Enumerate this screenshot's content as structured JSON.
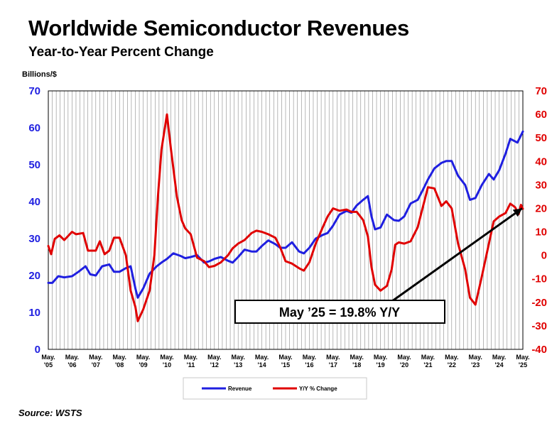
{
  "title": "Worldwide Semiconductor Revenues",
  "subtitle": "Year-to-Year Percent Change",
  "unit_label": "Billions/$",
  "source": "Source: WSTS",
  "annotation": "May ’25 = 19.8% Y/Y",
  "colors": {
    "revenue": "#1f1fe0",
    "yoy": "#e00000",
    "grid": "#888888",
    "arrow": "#000000"
  },
  "chart_data": {
    "type": "line",
    "title": "Worldwide Semiconductor Revenues",
    "subtitle": "Year-to-Year Percent Change",
    "ylabel": "Billions/$",
    "ylim": [
      0,
      70
    ],
    "y2lim": [
      -40,
      70
    ],
    "y_ticks": [
      0,
      10,
      20,
      30,
      40,
      50,
      60,
      70
    ],
    "y2_ticks": [
      -40,
      -30,
      -20,
      -10,
      0,
      10,
      20,
      30,
      40,
      50,
      60,
      70
    ],
    "x_tick_labels": [
      [
        "May.",
        "'05"
      ],
      [
        "May.",
        "'06"
      ],
      [
        "May.",
        "'07"
      ],
      [
        "May.",
        "'08"
      ],
      [
        "May.",
        "'09"
      ],
      [
        "May.",
        "'10"
      ],
      [
        "May.",
        "'11"
      ],
      [
        "May.",
        "'12"
      ],
      [
        "May.",
        "'13"
      ],
      [
        "May.",
        "'14"
      ],
      [
        "May.",
        "'15"
      ],
      [
        "May.",
        "'16"
      ],
      [
        "May.",
        "'17"
      ],
      [
        "May.",
        "'18"
      ],
      [
        "May.",
        "'19"
      ],
      [
        "May.",
        "'20"
      ],
      [
        "May.",
        "'21"
      ],
      [
        "May.",
        "'22"
      ],
      [
        "May.",
        "'23"
      ],
      [
        "May.",
        "'24"
      ],
      [
        "May.",
        "'25"
      ]
    ],
    "grid": "vertical",
    "legend_position": "bottom-center",
    "series": [
      {
        "name": "Revenue",
        "axis": "left",
        "points": [
          [
            2005.33,
            18.0
          ],
          [
            2005.5,
            18.0
          ],
          [
            2005.75,
            19.8
          ],
          [
            2006.0,
            19.5
          ],
          [
            2006.33,
            19.8
          ],
          [
            2006.6,
            21.0
          ],
          [
            2006.9,
            22.5
          ],
          [
            2007.1,
            20.3
          ],
          [
            2007.33,
            20.0
          ],
          [
            2007.6,
            22.5
          ],
          [
            2007.9,
            23.0
          ],
          [
            2008.1,
            21.0
          ],
          [
            2008.33,
            21.0
          ],
          [
            2008.6,
            22.0
          ],
          [
            2008.8,
            22.5
          ],
          [
            2009.0,
            16.5
          ],
          [
            2009.1,
            14.0
          ],
          [
            2009.33,
            16.5
          ],
          [
            2009.6,
            20.5
          ],
          [
            2009.9,
            22.5
          ],
          [
            2010.1,
            23.5
          ],
          [
            2010.33,
            24.5
          ],
          [
            2010.6,
            26.0
          ],
          [
            2010.9,
            25.3
          ],
          [
            2011.1,
            24.7
          ],
          [
            2011.33,
            25.0
          ],
          [
            2011.6,
            25.5
          ],
          [
            2011.9,
            23.5
          ],
          [
            2012.1,
            23.8
          ],
          [
            2012.33,
            24.5
          ],
          [
            2012.6,
            25.0
          ],
          [
            2012.9,
            24.0
          ],
          [
            2013.1,
            23.5
          ],
          [
            2013.33,
            25.0
          ],
          [
            2013.6,
            27.0
          ],
          [
            2013.9,
            26.5
          ],
          [
            2014.1,
            26.5
          ],
          [
            2014.33,
            28.0
          ],
          [
            2014.6,
            29.5
          ],
          [
            2014.9,
            28.5
          ],
          [
            2015.1,
            27.5
          ],
          [
            2015.33,
            27.5
          ],
          [
            2015.6,
            29.0
          ],
          [
            2015.9,
            26.5
          ],
          [
            2016.1,
            26.0
          ],
          [
            2016.33,
            27.5
          ],
          [
            2016.6,
            30.0
          ],
          [
            2016.9,
            31.0
          ],
          [
            2017.1,
            31.5
          ],
          [
            2017.33,
            33.5
          ],
          [
            2017.6,
            36.5
          ],
          [
            2017.9,
            37.5
          ],
          [
            2018.1,
            37.0
          ],
          [
            2018.33,
            39.0
          ],
          [
            2018.6,
            40.5
          ],
          [
            2018.8,
            41.5
          ],
          [
            2018.95,
            36.0
          ],
          [
            2019.1,
            32.5
          ],
          [
            2019.33,
            33.0
          ],
          [
            2019.6,
            36.5
          ],
          [
            2019.9,
            35.0
          ],
          [
            2020.1,
            34.8
          ],
          [
            2020.33,
            36.0
          ],
          [
            2020.6,
            39.5
          ],
          [
            2020.9,
            40.5
          ],
          [
            2021.1,
            43.0
          ],
          [
            2021.33,
            46.0
          ],
          [
            2021.6,
            49.0
          ],
          [
            2021.9,
            50.5
          ],
          [
            2022.1,
            51.0
          ],
          [
            2022.33,
            51.0
          ],
          [
            2022.6,
            47.0
          ],
          [
            2022.9,
            44.5
          ],
          [
            2023.1,
            40.5
          ],
          [
            2023.33,
            41.0
          ],
          [
            2023.6,
            44.5
          ],
          [
            2023.9,
            47.5
          ],
          [
            2024.1,
            46.0
          ],
          [
            2024.33,
            48.5
          ],
          [
            2024.6,
            53.0
          ],
          [
            2024.8,
            57.0
          ],
          [
            2025.1,
            56.0
          ],
          [
            2025.33,
            59.0
          ]
        ]
      },
      {
        "name": "Y/Y % Change",
        "axis": "right",
        "points": [
          [
            2005.33,
            4.0
          ],
          [
            2005.45,
            0.5
          ],
          [
            2005.6,
            7.0
          ],
          [
            2005.8,
            8.5
          ],
          [
            2006.0,
            6.5
          ],
          [
            2006.33,
            10.0
          ],
          [
            2006.5,
            9.0
          ],
          [
            2006.8,
            9.5
          ],
          [
            2007.0,
            2.0
          ],
          [
            2007.33,
            2.0
          ],
          [
            2007.5,
            6.0
          ],
          [
            2007.7,
            0.5
          ],
          [
            2007.9,
            2.0
          ],
          [
            2008.1,
            7.5
          ],
          [
            2008.33,
            7.5
          ],
          [
            2008.6,
            0.0
          ],
          [
            2008.8,
            -15.0
          ],
          [
            2009.0,
            -22.0
          ],
          [
            2009.1,
            -28.0
          ],
          [
            2009.33,
            -23.0
          ],
          [
            2009.6,
            -15.0
          ],
          [
            2009.8,
            0.0
          ],
          [
            2009.95,
            25.0
          ],
          [
            2010.1,
            45.0
          ],
          [
            2010.33,
            60.0
          ],
          [
            2010.5,
            45.0
          ],
          [
            2010.75,
            25.0
          ],
          [
            2010.95,
            15.0
          ],
          [
            2011.1,
            11.5
          ],
          [
            2011.33,
            9.0
          ],
          [
            2011.6,
            -1.0
          ],
          [
            2011.9,
            -2.5
          ],
          [
            2012.1,
            -5.0
          ],
          [
            2012.33,
            -4.5
          ],
          [
            2012.6,
            -3.0
          ],
          [
            2012.9,
            0.0
          ],
          [
            2013.1,
            3.0
          ],
          [
            2013.33,
            5.0
          ],
          [
            2013.6,
            6.5
          ],
          [
            2013.9,
            9.5
          ],
          [
            2014.1,
            10.5
          ],
          [
            2014.33,
            10.0
          ],
          [
            2014.6,
            9.0
          ],
          [
            2014.9,
            7.5
          ],
          [
            2015.1,
            3.5
          ],
          [
            2015.33,
            -2.5
          ],
          [
            2015.6,
            -3.5
          ],
          [
            2015.9,
            -5.5
          ],
          [
            2016.1,
            -6.5
          ],
          [
            2016.33,
            -3.0
          ],
          [
            2016.6,
            5.0
          ],
          [
            2016.9,
            12.0
          ],
          [
            2017.1,
            16.5
          ],
          [
            2017.33,
            20.0
          ],
          [
            2017.6,
            19.0
          ],
          [
            2017.9,
            19.5
          ],
          [
            2018.1,
            18.5
          ],
          [
            2018.33,
            18.5
          ],
          [
            2018.6,
            15.0
          ],
          [
            2018.8,
            8.0
          ],
          [
            2018.95,
            -5.0
          ],
          [
            2019.1,
            -12.5
          ],
          [
            2019.33,
            -15.0
          ],
          [
            2019.6,
            -13.0
          ],
          [
            2019.8,
            -6.0
          ],
          [
            2019.95,
            4.5
          ],
          [
            2020.1,
            5.5
          ],
          [
            2020.33,
            5.0
          ],
          [
            2020.6,
            6.0
          ],
          [
            2020.9,
            12.0
          ],
          [
            2021.1,
            20.0
          ],
          [
            2021.33,
            29.0
          ],
          [
            2021.6,
            28.5
          ],
          [
            2021.9,
            21.0
          ],
          [
            2022.1,
            23.0
          ],
          [
            2022.33,
            20.0
          ],
          [
            2022.6,
            5.0
          ],
          [
            2022.9,
            -6.0
          ],
          [
            2023.1,
            -18.0
          ],
          [
            2023.33,
            -21.0
          ],
          [
            2023.6,
            -9.0
          ],
          [
            2023.9,
            5.0
          ],
          [
            2024.1,
            14.5
          ],
          [
            2024.33,
            16.5
          ],
          [
            2024.6,
            18.0
          ],
          [
            2024.8,
            22.0
          ],
          [
            2025.0,
            20.5
          ],
          [
            2025.15,
            17.5
          ],
          [
            2025.25,
            21.5
          ],
          [
            2025.33,
            19.8
          ]
        ]
      }
    ],
    "trend_arrow": {
      "from": [
        2019.33,
        -23
      ],
      "to": [
        2025.3,
        20
      ]
    },
    "annotation": "May ’25 = 19.8% Y/Y"
  }
}
